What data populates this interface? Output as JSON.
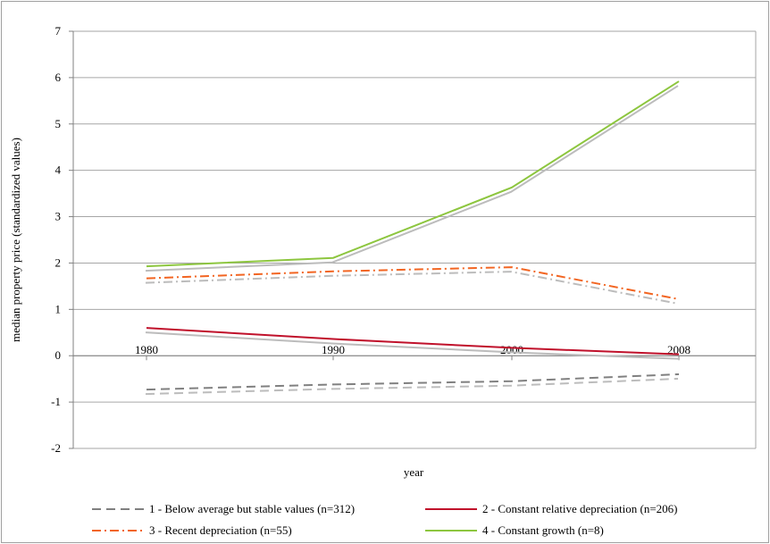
{
  "chart_data": {
    "type": "line",
    "xlabel": "year",
    "ylabel": "median property price (standardized values)",
    "categories": [
      "1980",
      "1990",
      "2000",
      "2008"
    ],
    "ylim": [
      -2,
      7
    ],
    "yticks": [
      -2,
      -1,
      0,
      1,
      2,
      3,
      4,
      5,
      6,
      7
    ],
    "grid": "horizontal",
    "legend_position": "bottom",
    "series": [
      {
        "name": "1 - Below average but stable values (n=312)",
        "values": [
          -0.73,
          -0.62,
          -0.55,
          -0.4
        ],
        "color": "#808080",
        "dash": "dashed"
      },
      {
        "name": "2 - Constant relative depreciation (n=206)",
        "values": [
          0.6,
          0.36,
          0.17,
          0.03
        ],
        "color": "#c0112b",
        "dash": "solid"
      },
      {
        "name": "3 - Recent depreciation (n=55)",
        "values": [
          1.67,
          1.82,
          1.91,
          1.22
        ],
        "color": "#f26522",
        "dash": "dashdot"
      },
      {
        "name": "4 - Constant growth (n=8)",
        "values": [
          1.93,
          2.11,
          3.63,
          5.92
        ],
        "color": "#8dc63f",
        "dash": "solid"
      }
    ],
    "shadow_color": "#bcbcbc"
  }
}
